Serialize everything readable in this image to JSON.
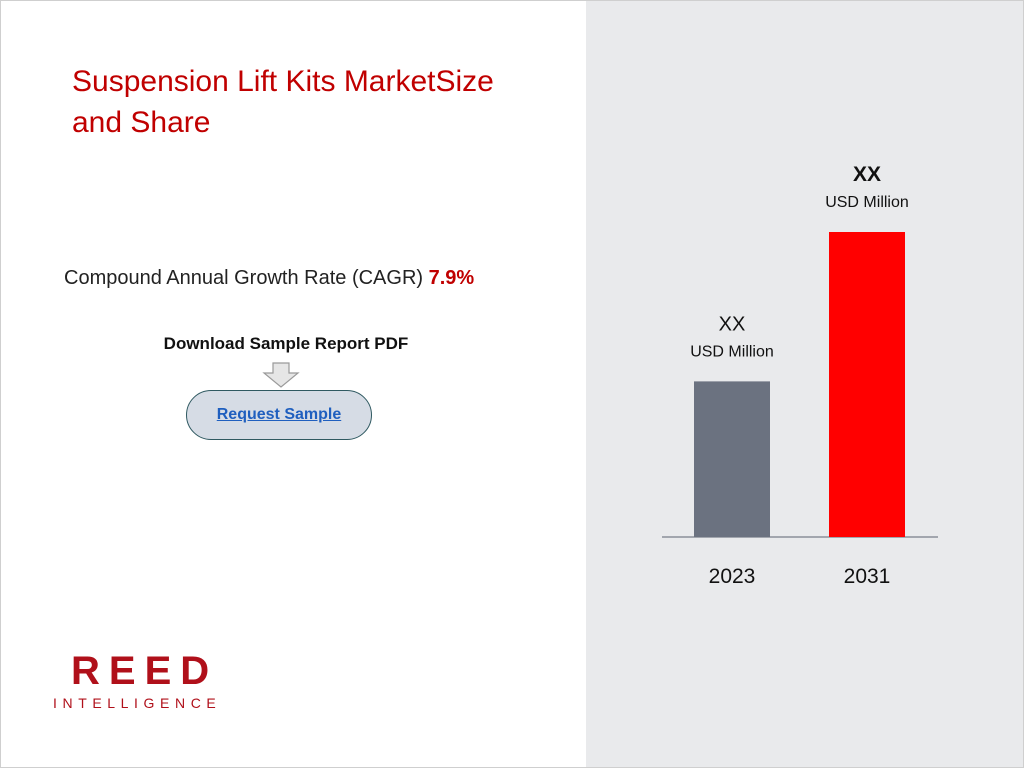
{
  "title": "Suspension Lift Kits MarketSize and Share",
  "cagr": {
    "label": "Compound Annual Growth Rate (CAGR)",
    "value": "7.9%"
  },
  "download": {
    "label": "Download Sample Report PDF",
    "button_label": "Request Sample"
  },
  "logo": {
    "main": "REED",
    "sub": "INTELLIGENCE"
  },
  "colors": {
    "title": "#c00000",
    "bar_2023": "#6b7280",
    "bar_2031": "#ff0000",
    "right_panel": "#e9eaec"
  },
  "chart_data": {
    "type": "bar",
    "categories": [
      "2023",
      "2031"
    ],
    "values": [
      1.0,
      1.96
    ],
    "value_labels": [
      {
        "value": "XX",
        "unit": "USD Million"
      },
      {
        "value": "XX",
        "unit": "USD Million"
      }
    ],
    "title": "",
    "xlabel": "",
    "ylabel": "",
    "grid": false,
    "axis_visible": false
  }
}
